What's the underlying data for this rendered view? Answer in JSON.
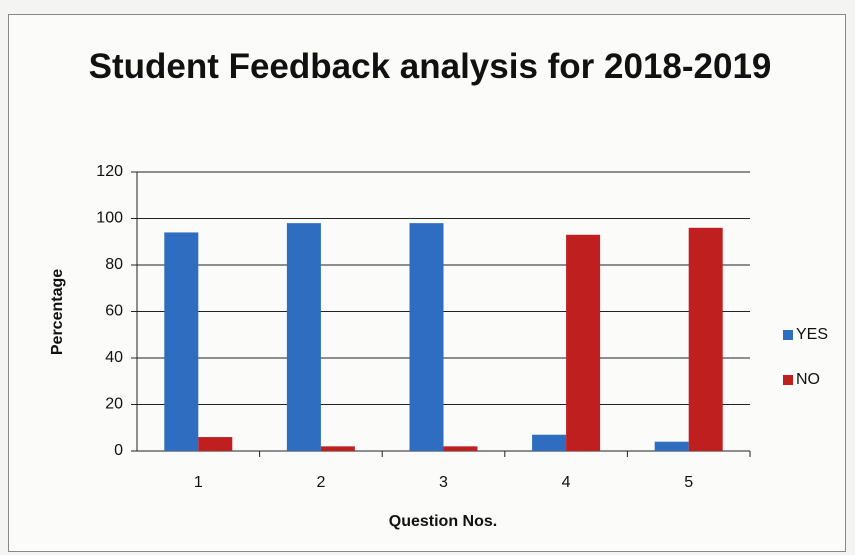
{
  "chart_data": {
    "type": "bar",
    "title": "Student Feedback analysis for 2018-2019",
    "x_label": "Question Nos.",
    "y_label": "Percentage",
    "categories": [
      "1",
      "2",
      "3",
      "4",
      "5"
    ],
    "series": [
      {
        "name": "YES",
        "color": "#2e6dbf",
        "values": [
          94,
          98,
          98,
          7,
          4
        ]
      },
      {
        "name": "NO",
        "color": "#c01f1f",
        "values": [
          6,
          2,
          2,
          93,
          96
        ]
      }
    ],
    "ylim": [
      0,
      120
    ],
    "yticks": [
      0,
      20,
      40,
      60,
      80,
      100,
      120
    ],
    "grid": true,
    "legend": "right"
  }
}
